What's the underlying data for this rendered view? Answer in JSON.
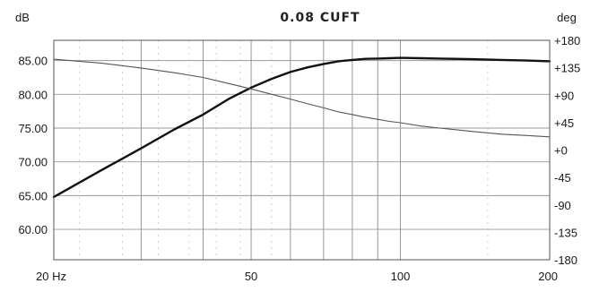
{
  "chart_data": {
    "type": "line",
    "title": "0.08 CUFT",
    "y_left_unit": "dB",
    "y_right_unit": "deg",
    "x_scale": "log",
    "xlim": [
      20,
      200
    ],
    "ylim_left": [
      55.5,
      88
    ],
    "ylim_right": [
      -180,
      180
    ],
    "x_tick_labels": [
      {
        "value": 20,
        "label": "20 Hz"
      },
      {
        "value": 50,
        "label": "50"
      },
      {
        "value": 100,
        "label": "100"
      },
      {
        "value": 200,
        "label": "200"
      }
    ],
    "y_left_ticks": [
      {
        "value": 85,
        "label": "85.00"
      },
      {
        "value": 80,
        "label": "80.00"
      },
      {
        "value": 75,
        "label": "75.00"
      },
      {
        "value": 70,
        "label": "70.00"
      },
      {
        "value": 65,
        "label": "65.00"
      },
      {
        "value": 60,
        "label": "60.00"
      }
    ],
    "y_right_ticks": [
      {
        "value": 180,
        "label": "+180"
      },
      {
        "value": 135,
        "label": "+135"
      },
      {
        "value": 90,
        "label": "+90"
      },
      {
        "value": 45,
        "label": "+45"
      },
      {
        "value": 0,
        "label": "+0"
      },
      {
        "value": -45,
        "label": "-45"
      },
      {
        "value": -90,
        "label": "-90"
      },
      {
        "value": -135,
        "label": "-135"
      },
      {
        "value": -180,
        "label": "-180"
      }
    ],
    "grid": true,
    "series": [
      {
        "axis": "left",
        "color": "#111111",
        "line_weight": "bold",
        "x": [
          20,
          25,
          30,
          35,
          40,
          45,
          50,
          55,
          60,
          65,
          70,
          75,
          80,
          85,
          90,
          95,
          100,
          110,
          120,
          140,
          160,
          180,
          200
        ],
        "y": [
          64.8,
          68.8,
          72.0,
          74.8,
          77.0,
          79.3,
          81.0,
          82.3,
          83.3,
          84.0,
          84.5,
          84.9,
          85.1,
          85.25,
          85.3,
          85.35,
          85.4,
          85.35,
          85.3,
          85.2,
          85.1,
          85.0,
          84.9
        ]
      },
      {
        "axis": "left",
        "color": "#555555",
        "line_weight": "thin",
        "x": [
          20,
          25,
          30,
          35,
          40,
          45,
          50,
          55,
          60,
          65,
          70,
          75,
          80,
          85,
          90,
          95,
          100,
          110,
          120,
          140,
          160,
          180,
          200
        ],
        "y": [
          85.2,
          84.6,
          83.9,
          83.2,
          82.5,
          81.6,
          80.8,
          80.0,
          79.3,
          78.6,
          78.0,
          77.4,
          77.0,
          76.6,
          76.3,
          76.0,
          75.8,
          75.3,
          75.0,
          74.5,
          74.1,
          73.9,
          73.7
        ]
      }
    ]
  }
}
